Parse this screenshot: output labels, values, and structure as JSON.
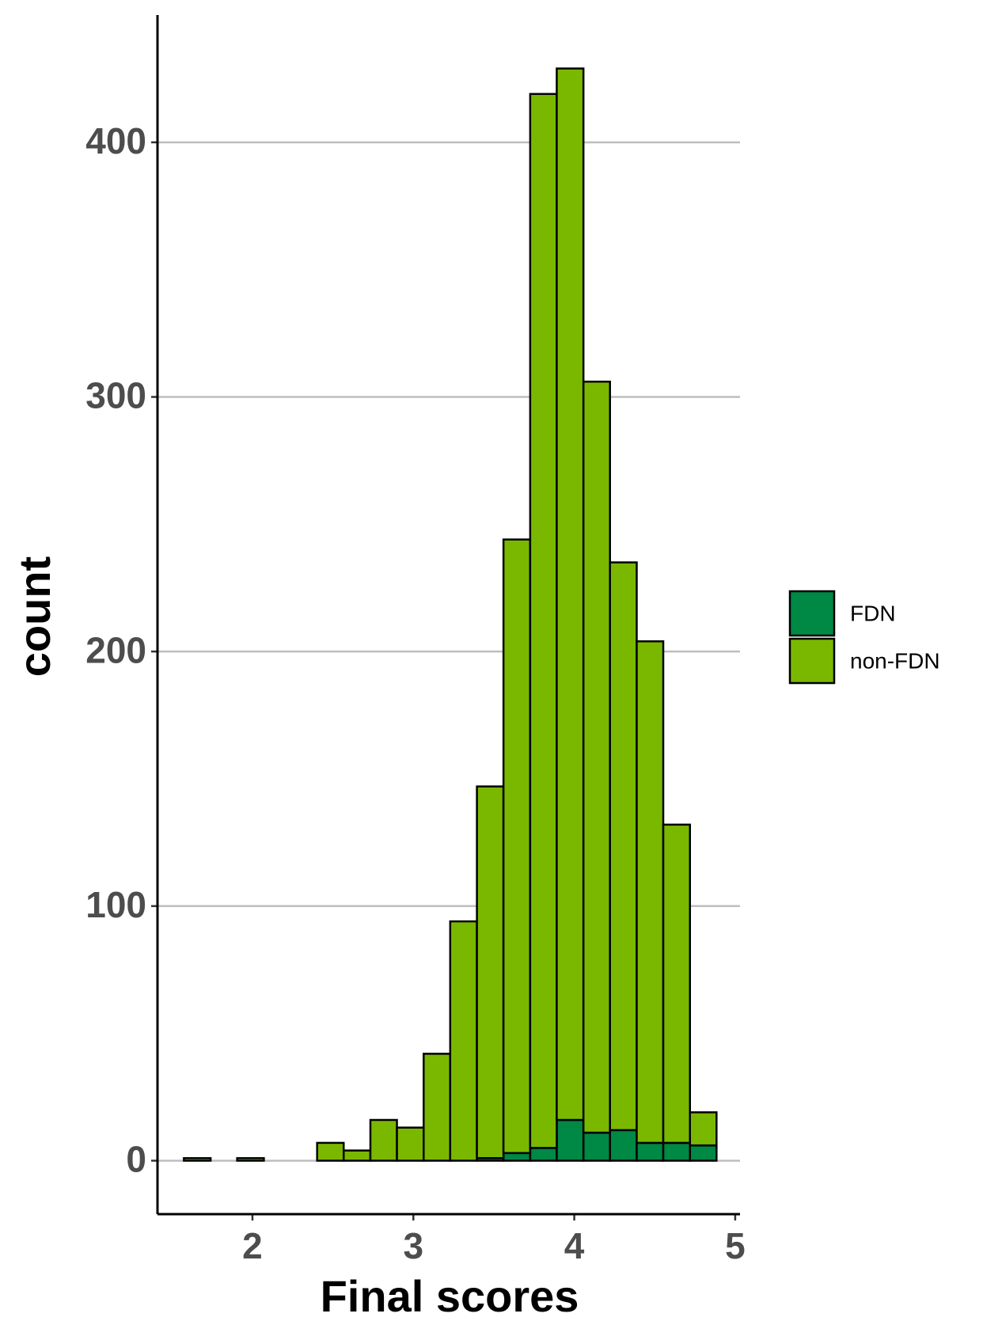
{
  "chart_data": {
    "type": "histogram",
    "x_label": "Final scores",
    "y_label": "count",
    "bins": [
      1.574,
      1.74,
      1.905,
      2.071,
      2.236,
      2.402,
      2.567,
      2.733,
      2.898,
      3.064,
      3.229,
      3.395,
      3.56,
      3.726,
      3.891,
      4.057,
      4.222,
      4.388,
      4.553,
      4.719,
      4.884
    ],
    "series": [
      {
        "name": "FDN",
        "color": "#008845",
        "values": [
          0,
          0,
          0,
          0,
          0,
          0,
          0,
          0,
          0,
          0,
          0,
          1,
          3,
          5,
          16,
          11,
          12,
          7,
          7,
          6
        ]
      },
      {
        "name": "non-FDN",
        "color": "#7ab800",
        "values": [
          1,
          0,
          1,
          0,
          0,
          7,
          4,
          16,
          13,
          42,
          94,
          146,
          241,
          414,
          413,
          295,
          223,
          197,
          125,
          13
        ]
      }
    ],
    "stacked": true,
    "xlim": [
      1.41,
      5.03
    ],
    "xticks": [
      2,
      3,
      4,
      5
    ],
    "ylim": [
      -21,
      450
    ],
    "yticks": [
      0,
      100,
      200,
      300,
      400
    ],
    "grid": true,
    "legend": "right"
  }
}
